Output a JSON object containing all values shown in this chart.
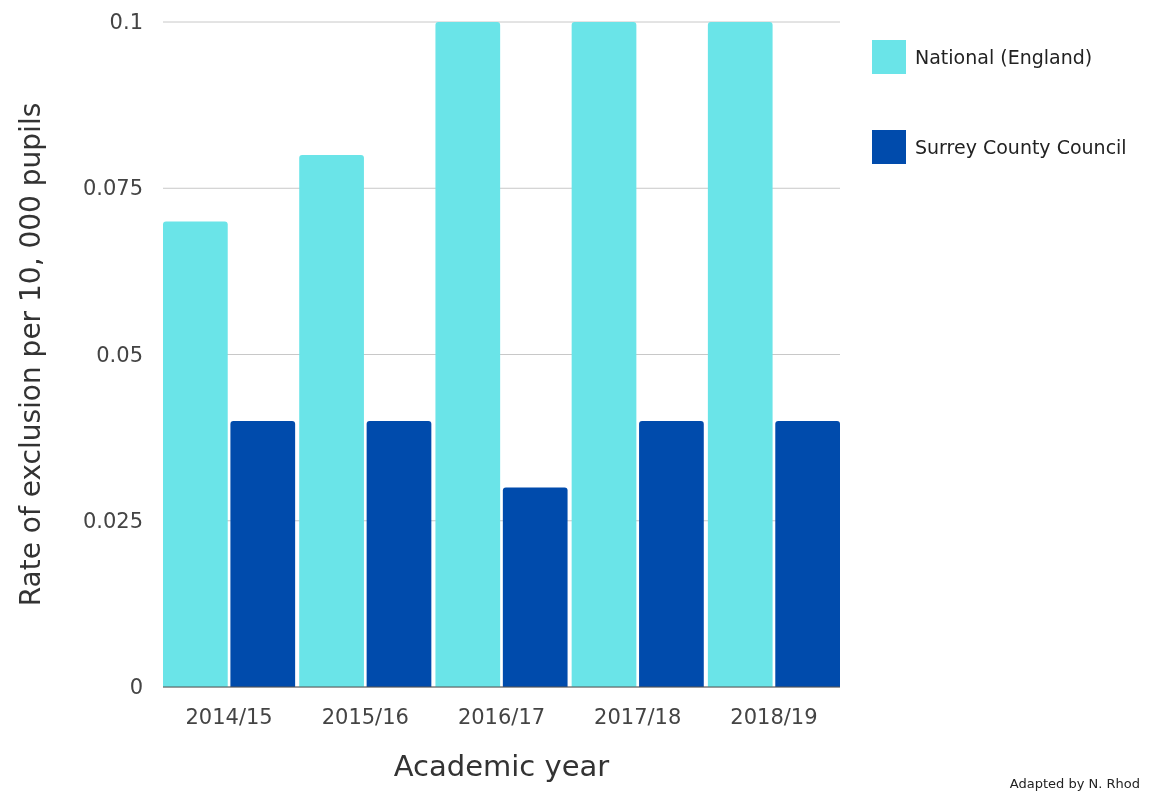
{
  "chart_data": {
    "type": "bar",
    "xlabel": "Academic year",
    "ylabel": "Rate of exclusion per 10, 000 pupils",
    "categories": [
      "2014/15",
      "2015/16",
      "2016/17",
      "2017/18",
      "2018/19"
    ],
    "series": [
      {
        "name": "National (England)",
        "color": "#6ae4e8",
        "values": [
          0.07,
          0.08,
          0.1,
          0.1,
          0.1
        ]
      },
      {
        "name": "Surrey County Council",
        "color": "#004bac",
        "values": [
          0.04,
          0.04,
          0.03,
          0.04,
          0.04
        ]
      }
    ],
    "ylim": [
      0,
      0.1
    ],
    "yticks": [
      0,
      0.025,
      0.05,
      0.075,
      0.1
    ],
    "grid": "y",
    "legend": "right",
    "annotations": [
      "Adapted by N. Rhod"
    ]
  }
}
